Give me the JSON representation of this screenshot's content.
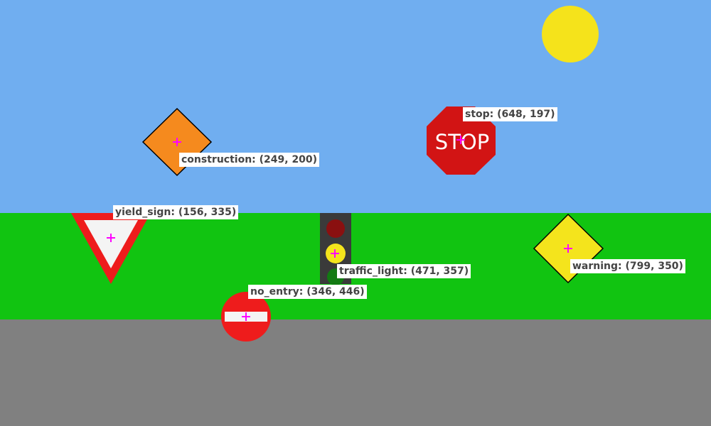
{
  "scene": {
    "colors": {
      "sky": "#70aef0",
      "grass": "#11c411",
      "road": "#808080",
      "sun": "#f5e31b",
      "marker": "#ff00ff"
    }
  },
  "signs": {
    "stop": {
      "text": "STOP",
      "color": "#d21414"
    },
    "construction": {
      "color": "#f58a1e"
    },
    "yield": {
      "color": "#ee1c1c"
    },
    "traffic_light": {
      "red": "#8a1010",
      "yellow": "#f4e41c",
      "green": "#127a12",
      "housing": "#3a3a3a"
    },
    "warning": {
      "color": "#f4e41c"
    },
    "no_entry": {
      "color": "#ee1c1c"
    }
  },
  "annotations": {
    "stop": "stop: (648, 197)",
    "construction": "construction: (249, 200)",
    "yield_sign": "yield_sign: (156, 335)",
    "traffic_light": "traffic_light: (471, 357)",
    "warning": "warning: (799, 350)",
    "no_entry": "no_entry: (346, 446)"
  }
}
